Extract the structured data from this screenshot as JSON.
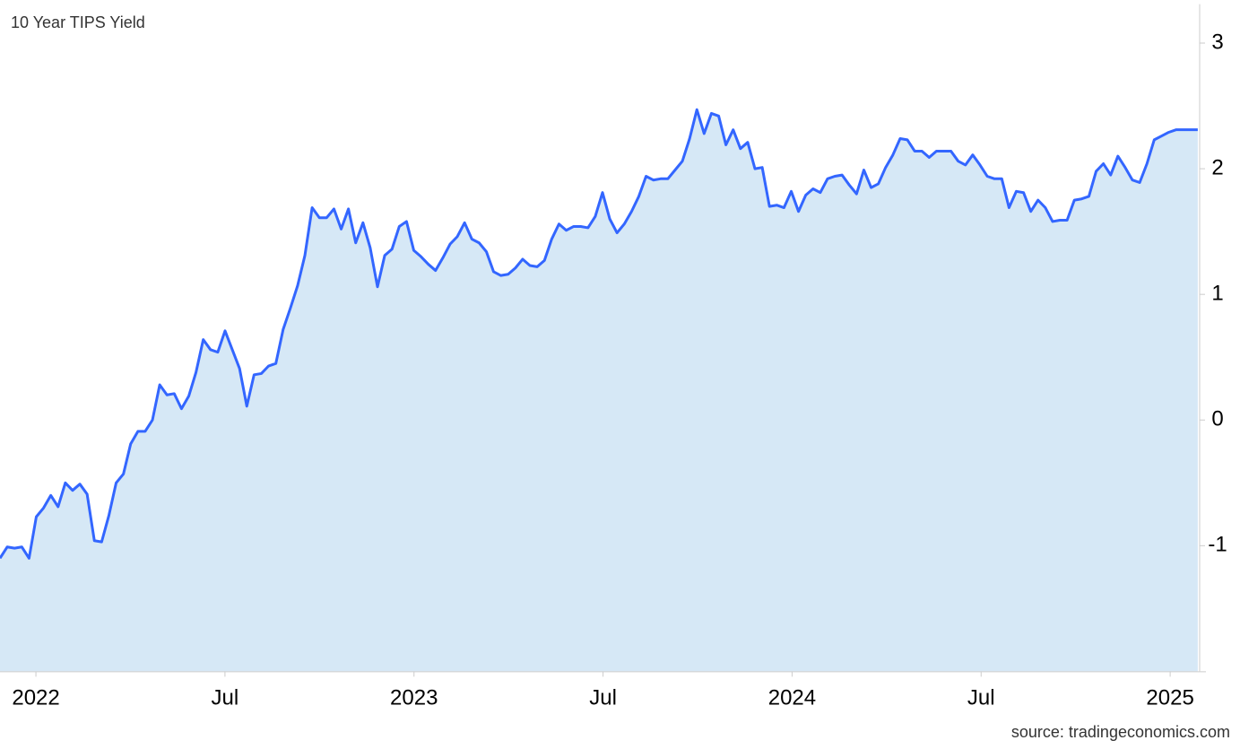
{
  "chart_data": {
    "type": "area",
    "title": "10 Year TIPS Yield",
    "source": "source: tradingeconomics.com",
    "color": "#3366ff",
    "area_color": "#d6e8f6",
    "x": [
      2021.905,
      2021.9242,
      2021.9434,
      2021.9626,
      2021.9818,
      2022.001,
      2022.0202,
      2022.0394,
      2022.0586,
      2022.0778,
      2022.097,
      2022.1162,
      2022.1354,
      2022.1546,
      2022.1738,
      2022.193,
      2022.2122,
      2022.2314,
      2022.2506,
      2022.2698,
      2022.289,
      2022.3082,
      2022.3274,
      2022.3466,
      2022.3658,
      2022.385,
      2022.4042,
      2022.4234,
      2022.4426,
      2022.4618,
      2022.481,
      2022.5002,
      2022.5194,
      2022.5386,
      2022.5578,
      2022.577,
      2022.5962,
      2022.6154,
      2022.6346,
      2022.6538,
      2022.673,
      2022.6922,
      2022.7114,
      2022.7306,
      2022.7498,
      2022.769,
      2022.7882,
      2022.8074,
      2022.8266,
      2022.8458,
      2022.865,
      2022.8842,
      2022.9034,
      2022.9226,
      2022.9418,
      2022.961,
      2022.9802,
      2022.9994,
      2023.0186,
      2023.0378,
      2023.057,
      2023.0762,
      2023.0954,
      2023.1146,
      2023.1338,
      2023.153,
      2023.1722,
      2023.1914,
      2023.2106,
      2023.2298,
      2023.249,
      2023.2682,
      2023.2874,
      2023.3066,
      2023.3258,
      2023.345,
      2023.3642,
      2023.3834,
      2023.4026,
      2023.4218,
      2023.441,
      2023.4602,
      2023.4794,
      2023.4986,
      2023.5178,
      2023.537,
      2023.5562,
      2023.5754,
      2023.5946,
      2023.6138,
      2023.633,
      2023.6522,
      2023.6714,
      2023.6906,
      2023.7098,
      2023.729,
      2023.7482,
      2023.7674,
      2023.7866,
      2023.8058,
      2023.825,
      2023.8442,
      2023.8634,
      2023.8826,
      2023.9018,
      2023.921,
      2023.9402,
      2023.9594,
      2023.9786,
      2023.9978,
      2024.017,
      2024.0362,
      2024.0554,
      2024.0746,
      2024.0938,
      2024.113,
      2024.1322,
      2024.1514,
      2024.1706,
      2024.1898,
      2024.209,
      2024.2282,
      2024.2474,
      2024.2666,
      2024.2858,
      2024.305,
      2024.3242,
      2024.3434,
      2024.3626,
      2024.3818,
      2024.401,
      2024.4202,
      2024.4394,
      2024.4586,
      2024.4778,
      2024.497,
      2024.5162,
      2024.5354,
      2024.5546,
      2024.5738,
      2024.593,
      2024.6122,
      2024.6314,
      2024.6506,
      2024.6698,
      2024.689,
      2024.7082,
      2024.7274,
      2024.7466,
      2024.7658,
      2024.785,
      2024.8042,
      2024.8234,
      2024.8426,
      2024.8618,
      2024.881,
      2024.9002,
      2024.9194,
      2024.9386,
      2024.9578,
      2024.977,
      2024.9962,
      2025.0154,
      2025.0346,
      2025.0538,
      2025.073
    ],
    "values": [
      -1.1,
      -1.01,
      -1.02,
      -1.01,
      -1.1,
      -0.77,
      -0.7,
      -0.6,
      -0.69,
      -0.5,
      -0.56,
      -0.51,
      -0.59,
      -0.96,
      -0.97,
      -0.76,
      -0.5,
      -0.43,
      -0.19,
      -0.09,
      -0.09,
      0.0,
      0.28,
      0.2,
      0.21,
      0.09,
      0.19,
      0.38,
      0.64,
      0.56,
      0.54,
      0.71,
      0.56,
      0.41,
      0.11,
      0.36,
      0.37,
      0.43,
      0.45,
      0.72,
      0.89,
      1.07,
      1.31,
      1.69,
      1.61,
      1.61,
      1.68,
      1.52,
      1.68,
      1.41,
      1.57,
      1.37,
      1.06,
      1.31,
      1.36,
      1.54,
      1.58,
      1.35,
      1.3,
      1.24,
      1.19,
      1.29,
      1.4,
      1.46,
      1.57,
      1.44,
      1.41,
      1.34,
      1.18,
      1.15,
      1.16,
      1.21,
      1.28,
      1.23,
      1.22,
      1.27,
      1.44,
      1.56,
      1.51,
      1.54,
      1.54,
      1.53,
      1.62,
      1.81,
      1.6,
      1.49,
      1.56,
      1.66,
      1.78,
      1.94,
      1.91,
      1.92,
      1.92,
      1.99,
      2.06,
      2.24,
      2.47,
      2.28,
      2.44,
      2.42,
      2.19,
      2.31,
      2.16,
      2.21,
      2.0,
      2.01,
      1.7,
      1.71,
      1.69,
      1.82,
      1.66,
      1.79,
      1.84,
      1.81,
      1.92,
      1.94,
      1.95,
      1.87,
      1.8,
      1.99,
      1.85,
      1.88,
      2.01,
      2.11,
      2.24,
      2.23,
      2.14,
      2.14,
      2.09,
      2.14,
      2.14,
      2.14,
      2.06,
      2.03,
      2.11,
      2.03,
      1.94,
      1.92,
      1.92,
      1.69,
      1.82,
      1.81,
      1.66,
      1.75,
      1.69,
      1.58,
      1.59,
      1.59,
      1.75,
      1.76,
      1.78,
      1.98,
      2.04,
      1.95,
      2.1,
      2.01,
      1.91,
      1.89,
      2.04,
      2.23,
      2.26,
      2.29,
      2.31,
      2.31,
      2.31,
      2.31
    ],
    "xlim": [
      2021.905,
      2025.078
    ],
    "xticks": [
      {
        "value": 2022,
        "label": "2022"
      },
      {
        "value": 2022.5,
        "label": "Jul"
      },
      {
        "value": 2023,
        "label": "2023"
      },
      {
        "value": 2023.5,
        "label": "Jul"
      },
      {
        "value": 2024,
        "label": "2024"
      },
      {
        "value": 2024.5,
        "label": "Jul"
      },
      {
        "value": 2025,
        "label": "2025"
      }
    ],
    "ylim": [
      -2,
      3.31
    ],
    "yticks": [
      -1,
      0,
      1,
      2,
      3
    ]
  }
}
